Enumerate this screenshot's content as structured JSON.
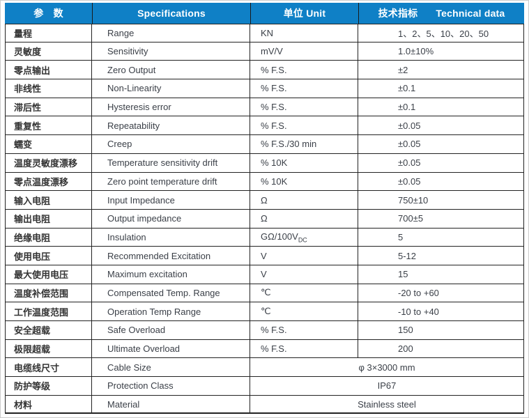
{
  "table": {
    "headers": {
      "param": "参　数",
      "specifications": "Specifications",
      "unit": "单位 Unit",
      "technical_zh": "技术指标",
      "technical_en": "Technical data"
    },
    "header_bg": "#0f80c6",
    "grid_color": "#222222",
    "rows": [
      {
        "zh": "量程",
        "en": "Range",
        "unit": "KN",
        "value": "1、2、5、10、20、50"
      },
      {
        "zh": "灵敏度",
        "en": "Sensitivity",
        "unit": "mV/V",
        "value": "1.0±10%"
      },
      {
        "zh": "零点输出",
        "en": "Zero Output",
        "unit": "% F.S.",
        "value": "±2"
      },
      {
        "zh": "非线性",
        "en": "Non-Linearity",
        "unit": "% F.S.",
        "value": "±0.1"
      },
      {
        "zh": "滞后性",
        "en": "Hysteresis error",
        "unit": "% F.S.",
        "value": "±0.1"
      },
      {
        "zh": "重复性",
        "en": "Repeatability",
        "unit": "% F.S.",
        "value": "±0.05"
      },
      {
        "zh": "蠕变",
        "en": "Creep",
        "unit": "% F.S./30 min",
        "value": "±0.05"
      },
      {
        "zh": "温度灵敏度漂移",
        "en": "Temperature sensitivity drift",
        "unit": "% 10K",
        "value": "±0.05"
      },
      {
        "zh": "零点温度漂移",
        "en": "Zero point temperature drift",
        "unit": "% 10K",
        "value": "±0.05"
      },
      {
        "zh": "输入电阻",
        "en": "Input Impedance",
        "unit": "Ω",
        "value": "750±10"
      },
      {
        "zh": "输出电阻",
        "en": "Output impedance",
        "unit": "Ω",
        "value": "700±5"
      },
      {
        "zh": "绝缘电阻",
        "en": "Insulation",
        "unit": "GΩ/100V",
        "unit_sub": "DC",
        "value": "5"
      },
      {
        "zh": "使用电压",
        "en": "Recommended Excitation",
        "unit": "V",
        "value": "5-12"
      },
      {
        "zh": "最大使用电压",
        "en": "Maximum excitation",
        "unit": "V",
        "value": "15"
      },
      {
        "zh": "温度补偿范围",
        "en": "Compensated Temp. Range",
        "unit": "℃",
        "value": "-20 to +60"
      },
      {
        "zh": "工作温度范围",
        "en": "Operation Temp Range",
        "unit": "℃",
        "value": "-10 to +40"
      },
      {
        "zh": "安全超载",
        "en": "Safe Overload",
        "unit": "% F.S.",
        "value": "150"
      },
      {
        "zh": "极限超载",
        "en": "Ultimate Overload",
        "unit": "% F.S.",
        "value": "200"
      },
      {
        "zh": "电缆线尺寸",
        "en": "Cable Size",
        "merged": true,
        "value": "φ 3×3000 mm"
      },
      {
        "zh": "防护等级",
        "en": "Protection Class",
        "merged": true,
        "value": "IP67"
      },
      {
        "zh": "材料",
        "en": "Material",
        "merged": true,
        "value": "Stainless steel"
      }
    ]
  }
}
